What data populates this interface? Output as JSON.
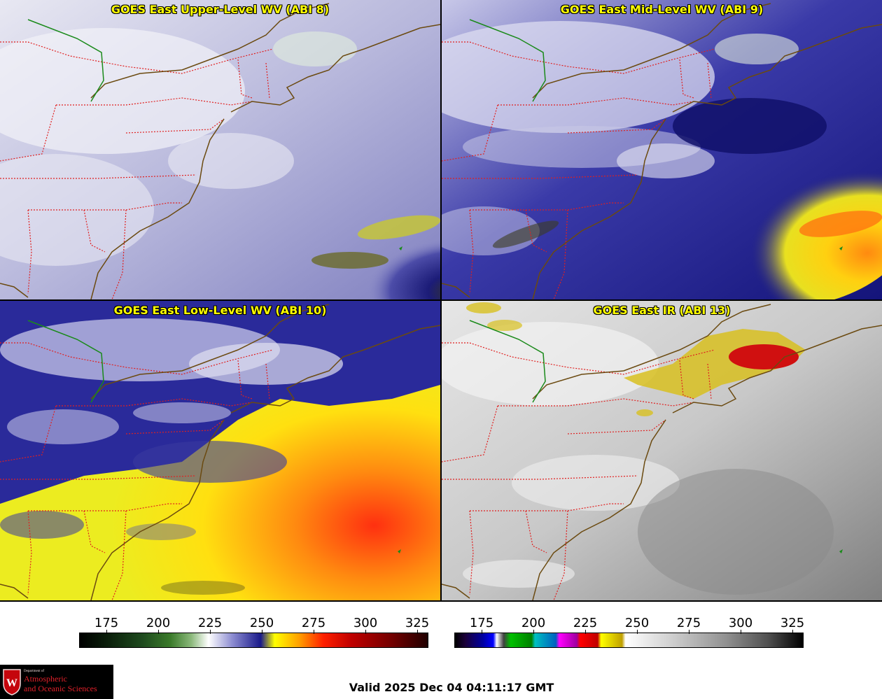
{
  "panels": [
    {
      "title": "GOES East Upper-Level WV (ABI 8)"
    },
    {
      "title": "GOES East Mid-Level WV (ABI 9)"
    },
    {
      "title": "GOES East Low-Level WV (ABI 10)"
    },
    {
      "title": "GOES East IR (ABI 13)"
    }
  ],
  "colorbars": [
    {
      "ticks": [
        "175",
        "200",
        "225",
        "250",
        "275",
        "300",
        "325"
      ]
    },
    {
      "ticks": [
        "175",
        "200",
        "225",
        "250",
        "275",
        "300",
        "325"
      ]
    }
  ],
  "logo": {
    "dept": "Department of",
    "line1": "Atmospheric",
    "line2": "and Oceanic Sciences",
    "shield_letter": "W"
  },
  "valid_time": "Valid 2025 Dec 04 04:11:17 GMT"
}
